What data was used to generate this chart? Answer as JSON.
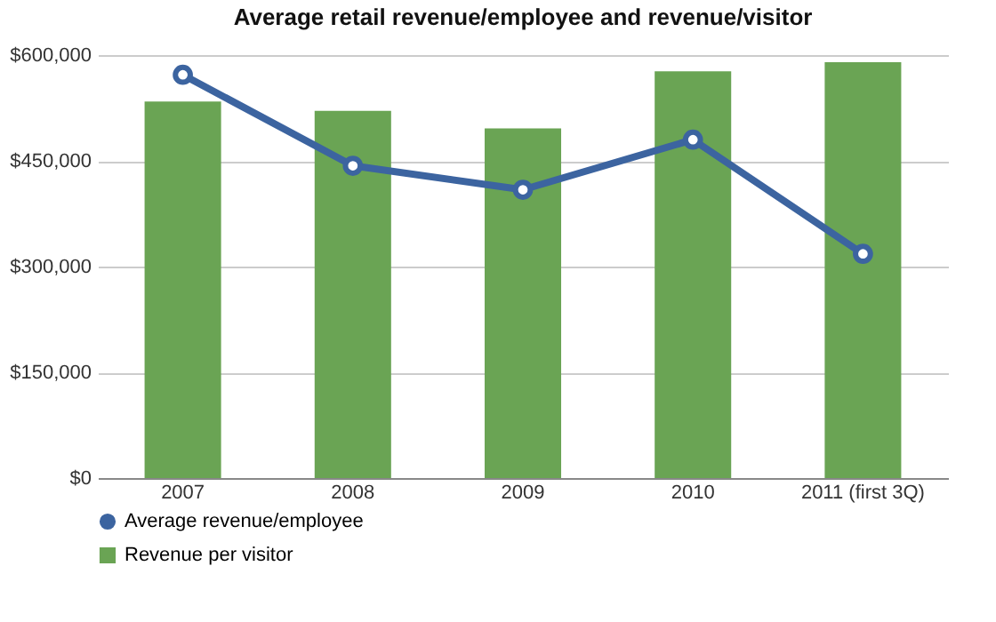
{
  "chart_data": {
    "type": "bar",
    "title": "Average retail revenue/employee and revenue/visitor",
    "categories": [
      "2007",
      "2008",
      "2009",
      "2010",
      "2011 (first 3Q)"
    ],
    "series": [
      {
        "name": "Average revenue/employee",
        "type": "line",
        "color": "#3c64a0",
        "values": [
          572000,
          443000,
          409000,
          480000,
          318000
        ]
      },
      {
        "name": "Revenue per visitor",
        "color": "#6aa454",
        "values": [
          534000,
          521000,
          496000,
          577000,
          590000
        ]
      }
    ],
    "ylim": [
      0,
      600000
    ],
    "yticks": [
      {
        "value": 0,
        "label": "$0"
      },
      {
        "value": 150000,
        "label": "$150,000"
      },
      {
        "value": 300000,
        "label": "$300,000"
      },
      {
        "value": 450000,
        "label": "$450,000"
      },
      {
        "value": 600000,
        "label": "$600,000"
      }
    ],
    "grid": "y",
    "legend": "bottom",
    "marker": "circle"
  }
}
